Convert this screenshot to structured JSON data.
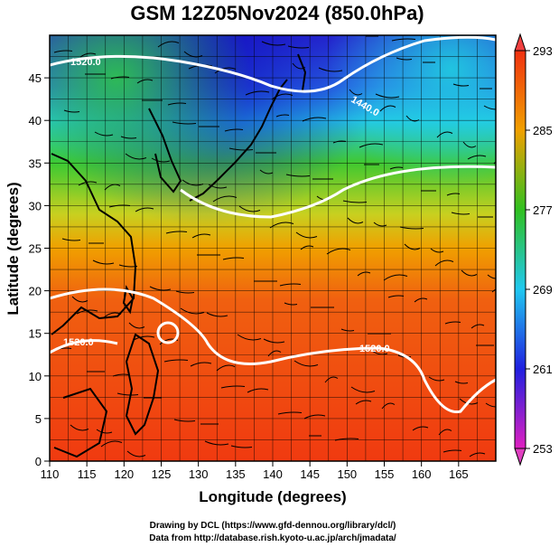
{
  "title": "GSM 12Z05Nov2024 (850.0hPa)",
  "x_axis": {
    "label": "Longitude (degrees)",
    "range": [
      110,
      170
    ],
    "ticks": [
      "110",
      "115",
      "120",
      "125",
      "130",
      "135",
      "140",
      "145",
      "150",
      "155",
      "160",
      "165"
    ]
  },
  "y_axis": {
    "label": "Latitude  (degrees)",
    "range": [
      0,
      50
    ],
    "ticks": [
      "0",
      "5",
      "10",
      "15",
      "20",
      "25",
      "30",
      "35",
      "40",
      "45"
    ]
  },
  "colorbar": {
    "range": [
      253,
      293
    ],
    "ticks": [
      "253",
      "261",
      "269",
      "277",
      "285",
      "293"
    ],
    "colors": [
      "#d020b0",
      "#2020e0",
      "#20c0f0",
      "#30c020",
      "#f0a000",
      "#f03010"
    ]
  },
  "contours": [
    {
      "label": "1520.0"
    },
    {
      "label": "1440.0"
    },
    {
      "label": "1520.0"
    },
    {
      "label": "1520.0"
    }
  ],
  "credits": [
    "Drawing by DCL (https://www.gfd-dennou.org/library/dcl/)",
    "Data from http://database.rish.kyoto-u.ac.jp/arch/jmadata/"
  ]
}
